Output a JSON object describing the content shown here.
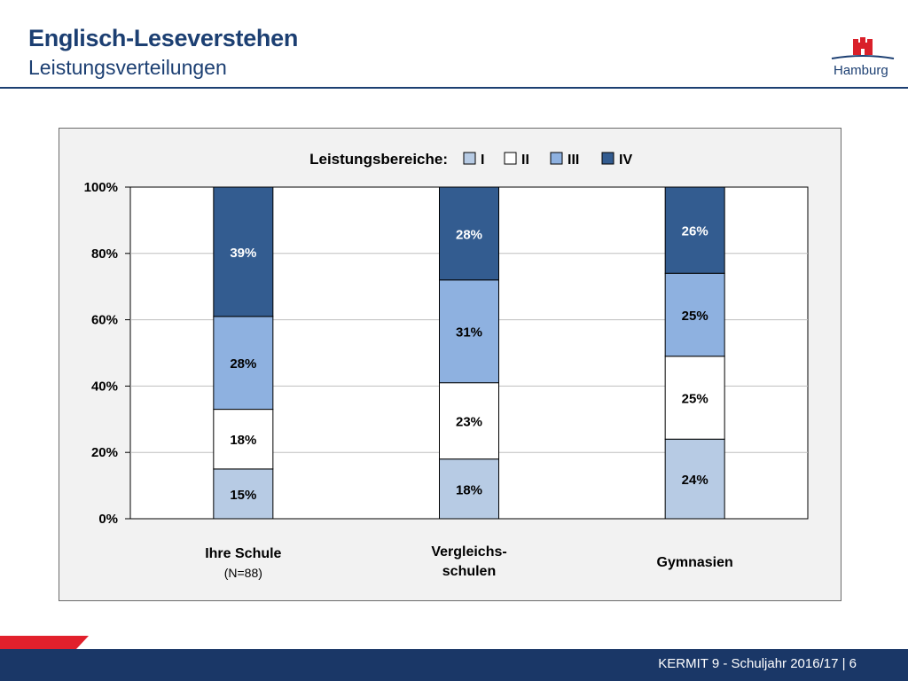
{
  "header": {
    "title": "Englisch-Leseverstehen",
    "subtitle": "Leistungsverteilungen",
    "logo_text": "Hamburg"
  },
  "footer": {
    "text": "KERMIT 9 - Schuljahr 2016/17 | 6"
  },
  "colors": {
    "I": "#b7cbe4",
    "II": "#ffffff",
    "III": "#8eb1e0",
    "IV": "#335c90",
    "brand": "#1c3f72",
    "footer": "#1a3767",
    "accent_red": "#e2202c"
  },
  "chart_data": {
    "type": "bar",
    "stacked": true,
    "legend_title": "Leistungsbereiche:",
    "legend_position": "top",
    "categories": [
      {
        "label": "Ihre Schule",
        "sub": "(N=88)"
      },
      {
        "label": "Vergleichs-\nschulen",
        "sub": ""
      },
      {
        "label": "Gymnasien",
        "sub": ""
      }
    ],
    "series": [
      {
        "name": "I",
        "values": [
          15,
          18,
          24
        ],
        "labels": [
          "15%",
          "18%",
          "24%"
        ]
      },
      {
        "name": "II",
        "values": [
          18,
          23,
          25
        ],
        "labels": [
          "18%",
          "23%",
          "25%"
        ]
      },
      {
        "name": "III",
        "values": [
          28,
          31,
          25
        ],
        "labels": [
          "28%",
          "31%",
          "25%"
        ]
      },
      {
        "name": "IV",
        "values": [
          39,
          28,
          26
        ],
        "labels": [
          "39%",
          "28%",
          "26%"
        ]
      }
    ],
    "y_ticks": [
      "0%",
      "20%",
      "40%",
      "60%",
      "80%",
      "100%"
    ],
    "ylim": [
      0,
      100
    ],
    "grid": true
  }
}
